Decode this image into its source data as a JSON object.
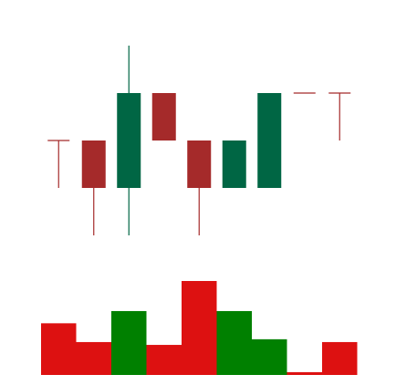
{
  "chart_data": {
    "type": "candlestick",
    "grid": false,
    "legend": "none",
    "up_color": "#006644",
    "down_color": "#a52a2a",
    "volume_up_color": "#008000",
    "volume_down_color": "#dd1111",
    "price_ylim": [
      0,
      100
    ],
    "volume_ylim": [
      0,
      100
    ],
    "candles": [
      {
        "open": 50,
        "high": 50,
        "low": 30,
        "close": 50
      },
      {
        "open": 50,
        "high": 50,
        "low": 10,
        "close": 30
      },
      {
        "open": 30,
        "high": 90,
        "low": 10,
        "close": 70
      },
      {
        "open": 70,
        "high": 70,
        "low": 50,
        "close": 50
      },
      {
        "open": 50,
        "high": 50,
        "low": 10,
        "close": 30
      },
      {
        "open": 30,
        "high": 50,
        "low": 30,
        "close": 50
      },
      {
        "open": 30,
        "high": 70,
        "low": 30,
        "close": 70
      },
      {
        "open": 70,
        "high": 70,
        "low": 70,
        "close": 70
      },
      {
        "open": 70,
        "high": 70,
        "low": 50,
        "close": 70
      }
    ],
    "volumes": [
      55,
      35,
      68,
      32,
      100,
      68,
      38,
      3,
      35
    ]
  }
}
